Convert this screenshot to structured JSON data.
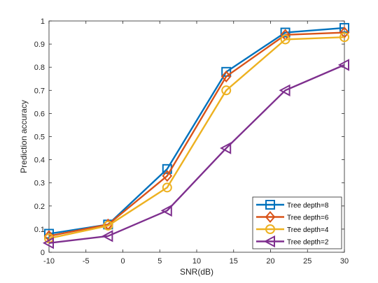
{
  "chart_data": {
    "type": "line",
    "title": "",
    "xlabel": "SNR(dB)",
    "ylabel": "Prediction accuracy",
    "x": [
      -10,
      -2,
      6,
      14,
      22,
      30
    ],
    "xlim": [
      -10,
      30
    ],
    "ylim": [
      0,
      1
    ],
    "xticks": [
      -10,
      -5,
      0,
      5,
      10,
      15,
      20,
      25,
      30
    ],
    "yticks": [
      0,
      0.1,
      0.2,
      0.3,
      0.4,
      0.5,
      0.6,
      0.7,
      0.8,
      0.9,
      1
    ],
    "grid": false,
    "legend_position": "bottom-right",
    "series": [
      {
        "name": "Tree depth=8",
        "values": [
          0.08,
          0.12,
          0.36,
          0.78,
          0.95,
          0.97
        ],
        "color": "#0072BD",
        "marker": "square"
      },
      {
        "name": "Tree depth=6",
        "values": [
          0.07,
          0.12,
          0.33,
          0.76,
          0.94,
          0.95
        ],
        "color": "#D95319",
        "marker": "diamond"
      },
      {
        "name": "Tree depth=4",
        "values": [
          0.06,
          0.115,
          0.28,
          0.7,
          0.92,
          0.93
        ],
        "color": "#EDB120",
        "marker": "circle"
      },
      {
        "name": "Tree depth=2",
        "values": [
          0.04,
          0.07,
          0.18,
          0.45,
          0.7,
          0.81
        ],
        "color": "#7E2F8E",
        "marker": "triangle-left"
      }
    ]
  }
}
